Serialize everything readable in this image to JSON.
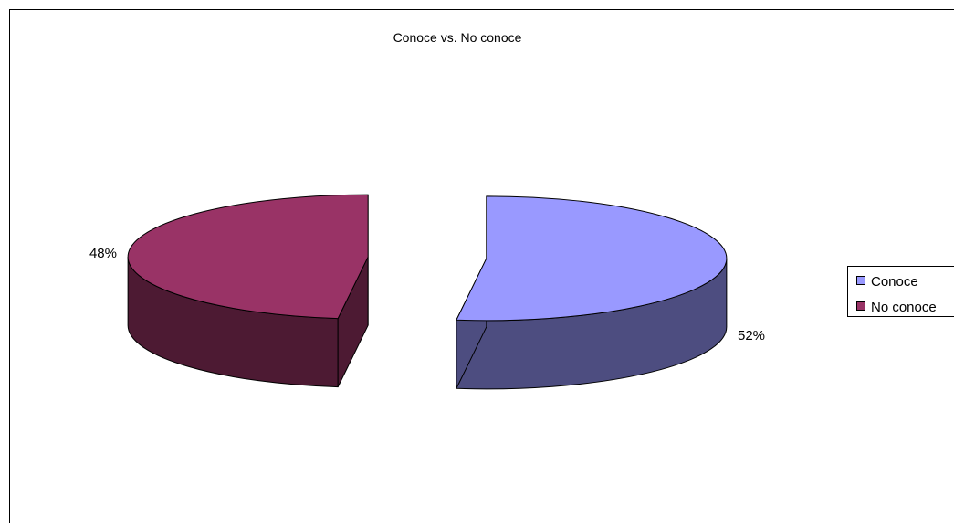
{
  "chart_data": {
    "type": "pie",
    "title": "Conoce vs. No conoce",
    "categories": [
      "Conoce",
      "No conoce"
    ],
    "values": [
      52,
      48
    ],
    "labels": [
      "52%",
      "48%"
    ],
    "colors": {
      "Conoce": {
        "top": "#9999ff",
        "side": "#4d4d80"
      },
      "No conoce": {
        "top": "#993366",
        "side": "#4d1a33"
      }
    },
    "exploded": true,
    "three_d": true,
    "legend": {
      "position": "right",
      "entries": [
        "Conoce",
        "No conoce"
      ]
    }
  }
}
